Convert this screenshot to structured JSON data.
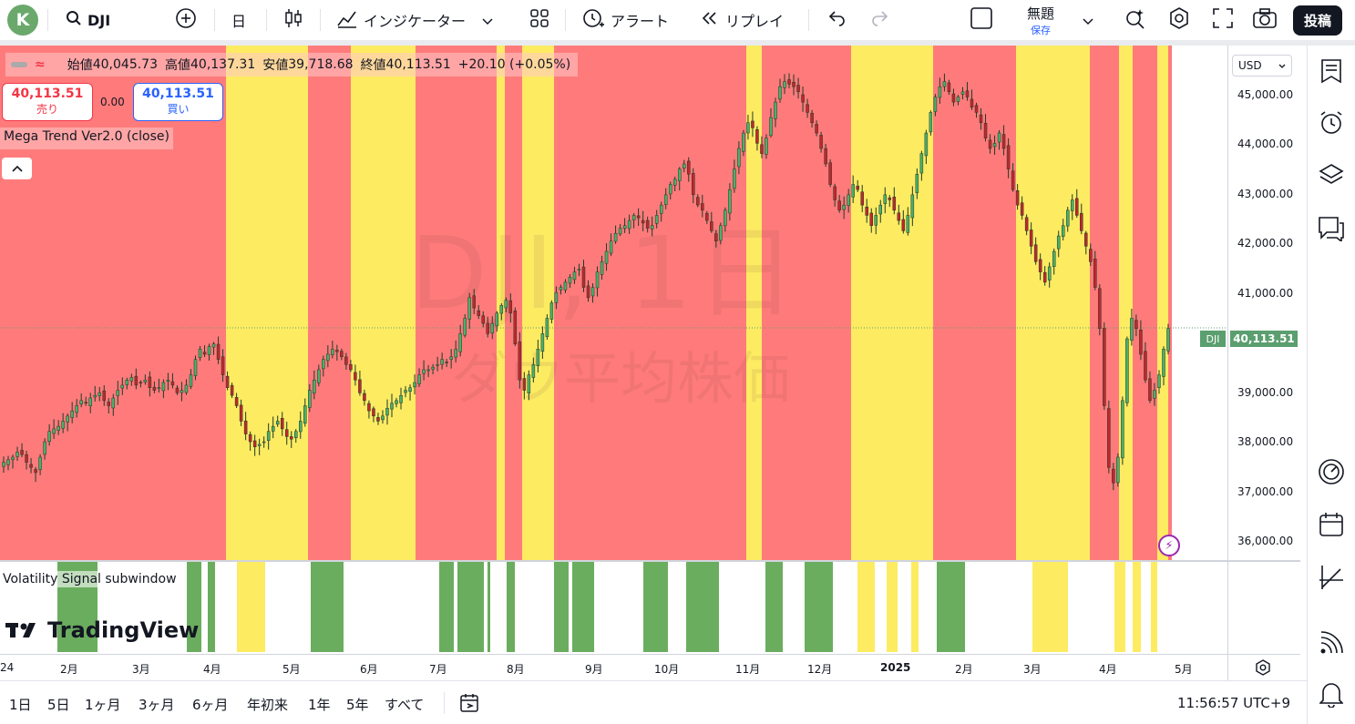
{
  "topbar": {
    "avatar_letter": "K",
    "symbol": "DJI",
    "interval": "日",
    "indicators": "インジケーター",
    "alert": "アラート",
    "replay": "リプレイ",
    "layout_title": "無題",
    "save_label": "保存",
    "post_button": "投稿"
  },
  "legend": {
    "open_label": "始値",
    "open": "40,045.73",
    "high_label": "高値",
    "high": "40,137.31",
    "low_label": "安値",
    "low": "39,718.68",
    "close_label": "終値",
    "close": "40,113.51",
    "change": "+20.10 (+0.05%)",
    "sell_price": "40,113.51",
    "sell_label": "売り",
    "buy_price": "40,113.51",
    "buy_label": "買い",
    "spread": "0.00",
    "indicator_name": "Mega Trend Ver2.0 (close)",
    "collapse_icon": "chevron-up-icon"
  },
  "watermark": {
    "line1": "DJI, 1日",
    "line2": "ダウ平均株価"
  },
  "price_axis": {
    "currency": "USD",
    "ticks": [
      "45,000.00",
      "44,000.00",
      "43,000.00",
      "42,000.00",
      "41,000.00",
      "39,000.00",
      "38,000.00",
      "37,000.00",
      "36,000.00"
    ],
    "last_price": "40,113.51",
    "symbol_tag": "DJI"
  },
  "subwindow": {
    "name": "Volatility Signal subwindow",
    "logo": "TradingView"
  },
  "time_axis": [
    "24",
    "2月",
    "3月",
    "4月",
    "5月",
    "6月",
    "7月",
    "8月",
    "9月",
    "10月",
    "11月",
    "12月",
    "2025",
    "2月",
    "3月",
    "4月",
    "5月"
  ],
  "bottombar": {
    "ranges": [
      "1日",
      "5日",
      "1ヶ月",
      "3ヶ月",
      "6ヶ月",
      "年初来",
      "1年",
      "5年",
      "すべて"
    ],
    "clock": "11:56:57 UTC+9"
  },
  "colors": {
    "bear_zone": "#ff7b7b",
    "neutral_zone": "#fdeb62",
    "signal_green": "#6aad5e",
    "signal_yellow": "#fdeb62",
    "up_candle": "#4caf6a",
    "down_candle": "#c0272d",
    "last_price_tag": "#5b9e6f"
  },
  "chart_data": {
    "type": "candlestick",
    "x_unit": "trading day (2024-01 to 2025-04)",
    "y_unit": "USD",
    "ylim": [
      35600,
      45600
    ],
    "close_path": [
      37500,
      37550,
      37600,
      37700,
      37650,
      37500,
      37400,
      37300,
      37600,
      37900,
      38100,
      38150,
      38200,
      38300,
      38400,
      38500,
      38600,
      38700,
      38650,
      38750,
      38800,
      38850,
      38700,
      38600,
      38750,
      38900,
      39000,
      39100,
      39150,
      39000,
      39050,
      39100,
      38950,
      38900,
      38950,
      39050,
      39100,
      39000,
      38850,
      38900,
      39000,
      39200,
      39500,
      39700,
      39600,
      39750,
      39800,
      39500,
      39200,
      38950,
      38800,
      38600,
      38300,
      38050,
      37900,
      37800,
      37850,
      37900,
      38100,
      38200,
      38300,
      38150,
      38000,
      37950,
      38100,
      38300,
      38600,
      38900,
      39100,
      39300,
      39500,
      39600,
      39700,
      39650,
      39550,
      39400,
      39300,
      39100,
      38850,
      38700,
      38500,
      38400,
      38300,
      38400,
      38550,
      38650,
      38700,
      38800,
      38900,
      38950,
      39050,
      39200,
      39300,
      39300,
      39350,
      39400,
      39500,
      39450,
      39550,
      39700,
      40000,
      40300,
      40700,
      40500,
      40350,
      40200,
      40000,
      40200,
      40400,
      40550,
      40650,
      40400,
      39800,
      39100,
      38900,
      39200,
      39400,
      39700,
      40000,
      40300,
      40600,
      40800,
      40900,
      41000,
      41100,
      41200,
      41250,
      40900,
      40700,
      40900,
      41200,
      41400,
      41600,
      41800,
      41950,
      42050,
      42100,
      42200,
      42300,
      42250,
      42150,
      42050,
      42100,
      42300,
      42500,
      42700,
      42900,
      43000,
      43200,
      43300,
      43100,
      42700,
      42500,
      42400,
      42200,
      42000,
      41800,
      42100,
      42400,
      42800,
      43200,
      43600,
      43900,
      44100,
      44000,
      43700,
      43500,
      43800,
      44200,
      44500,
      44800,
      44900,
      44850,
      44800,
      44700,
      44500,
      44300,
      44100,
      43900,
      43600,
      43300,
      42900,
      42600,
      42400,
      42500,
      42700,
      42900,
      42800,
      42500,
      42300,
      42100,
      42300,
      42500,
      42700,
      42600,
      42400,
      42200,
      42000,
      42300,
      42700,
      43100,
      43500,
      43900,
      44300,
      44600,
      44800,
      44900,
      44700,
      44500,
      44600,
      44700,
      44600,
      44400,
      44300,
      44100,
      43800,
      43600,
      43700,
      43900,
      43600,
      43200,
      42800,
      42500,
      42300,
      42000,
      41700,
      41400,
      41200,
      41000,
      41300,
      41600,
      41900,
      42100,
      42400,
      42600,
      42300,
      42000,
      41700,
      41400,
      40900,
      40100,
      38600,
      37400,
      37100,
      37600,
      38700,
      39900,
      40300,
      40100,
      39600,
      39100,
      38700,
      38900,
      39200,
      39700,
      40100
    ]
  }
}
